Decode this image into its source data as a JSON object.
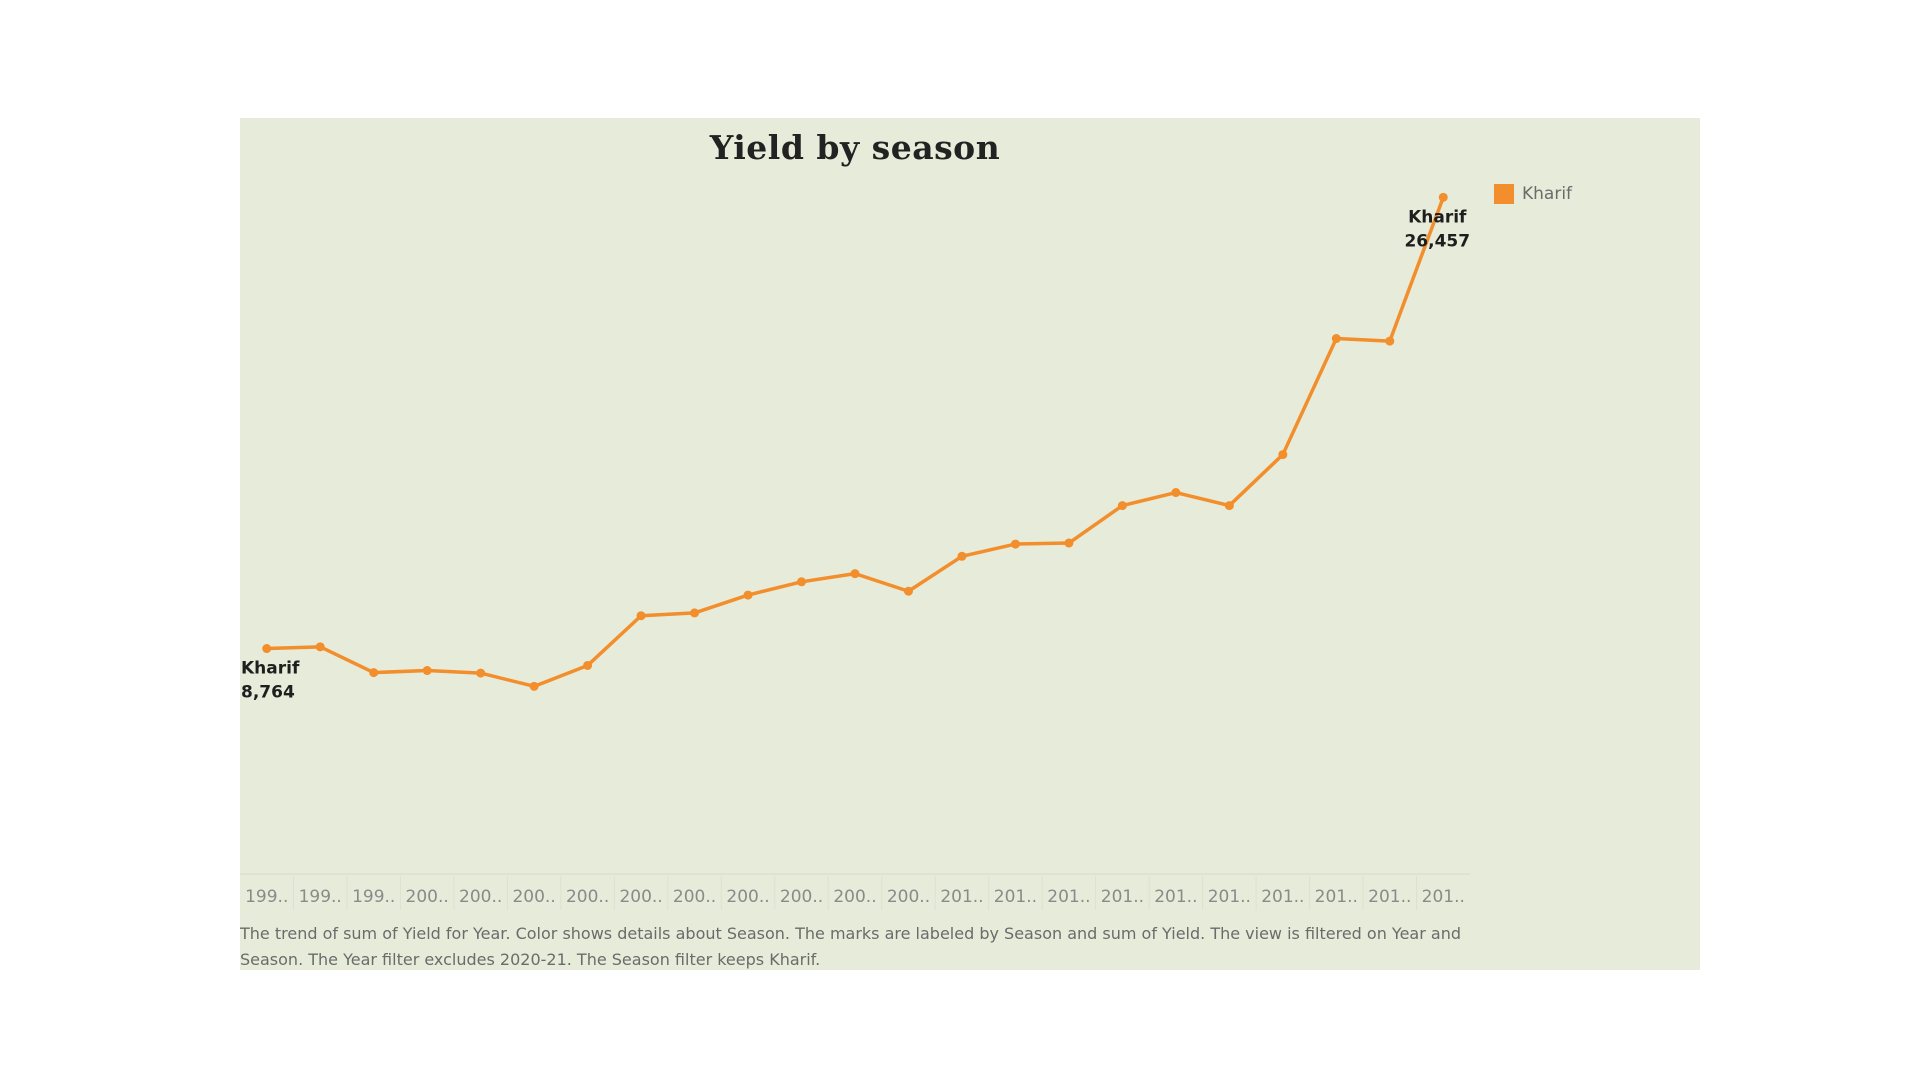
{
  "chart_data": {
    "type": "line",
    "title": "Yield by season",
    "legend": {
      "position": "top-right",
      "entries": [
        {
          "label": "Kharif",
          "color": "#f28e2b"
        }
      ]
    },
    "x_tick_labels": [
      "199..",
      "199..",
      "199..",
      "200..",
      "200..",
      "200..",
      "200..",
      "200..",
      "200..",
      "200..",
      "200..",
      "200..",
      "200..",
      "201..",
      "201..",
      "201..",
      "201..",
      "201..",
      "201..",
      "201..",
      "201..",
      "201..",
      "201.."
    ],
    "series": [
      {
        "name": "Kharif",
        "color": "#f28e2b",
        "values": [
          8764,
          8830,
          7820,
          7900,
          7800,
          7280,
          8100,
          10050,
          10160,
          10860,
          11380,
          11700,
          11010,
          12380,
          12860,
          12900,
          14370,
          14880,
          14370,
          16370,
          20920,
          20820,
          26457
        ]
      }
    ],
    "data_labels": [
      {
        "series": "Kharif",
        "point_index": 0,
        "text_lines": [
          "Kharif",
          "8,764"
        ]
      },
      {
        "series": "Kharif",
        "point_index": 22,
        "text_lines": [
          "Kharif",
          "26,457"
        ]
      }
    ],
    "ylim": [
      0,
      28000
    ],
    "y_axis_visible": false,
    "grid": false,
    "xlabel": "",
    "ylabel": ""
  },
  "caption": "The trend of sum of Yield for Year.  Color shows details about Season.  The marks are labeled by Season and sum of Yield. The view is filtered on Year and Season. The Year filter excludes 2020-21. The Season filter keeps Kharif.",
  "colors": {
    "panel_background": "#e7ebd9",
    "line": "#f28e2b",
    "tick_text": "#8a8a8a",
    "caption_text": "#6b6b6b"
  }
}
